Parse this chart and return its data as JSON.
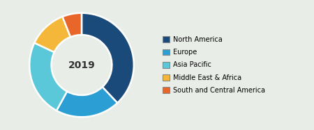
{
  "labels": [
    "North America",
    "Europe",
    "Asia Pacific",
    "Middle East & Africa",
    "South and Central America"
  ],
  "values": [
    38,
    20,
    24,
    12,
    6
  ],
  "colors": [
    "#1a4a7a",
    "#2b9fd4",
    "#5ac8d8",
    "#f5b73a",
    "#e8662a"
  ],
  "center_text": "2019",
  "background_color": "#e8ede8",
  "wedge_edge_color": "#ffffff",
  "donut_width": 0.42,
  "startangle": 90
}
